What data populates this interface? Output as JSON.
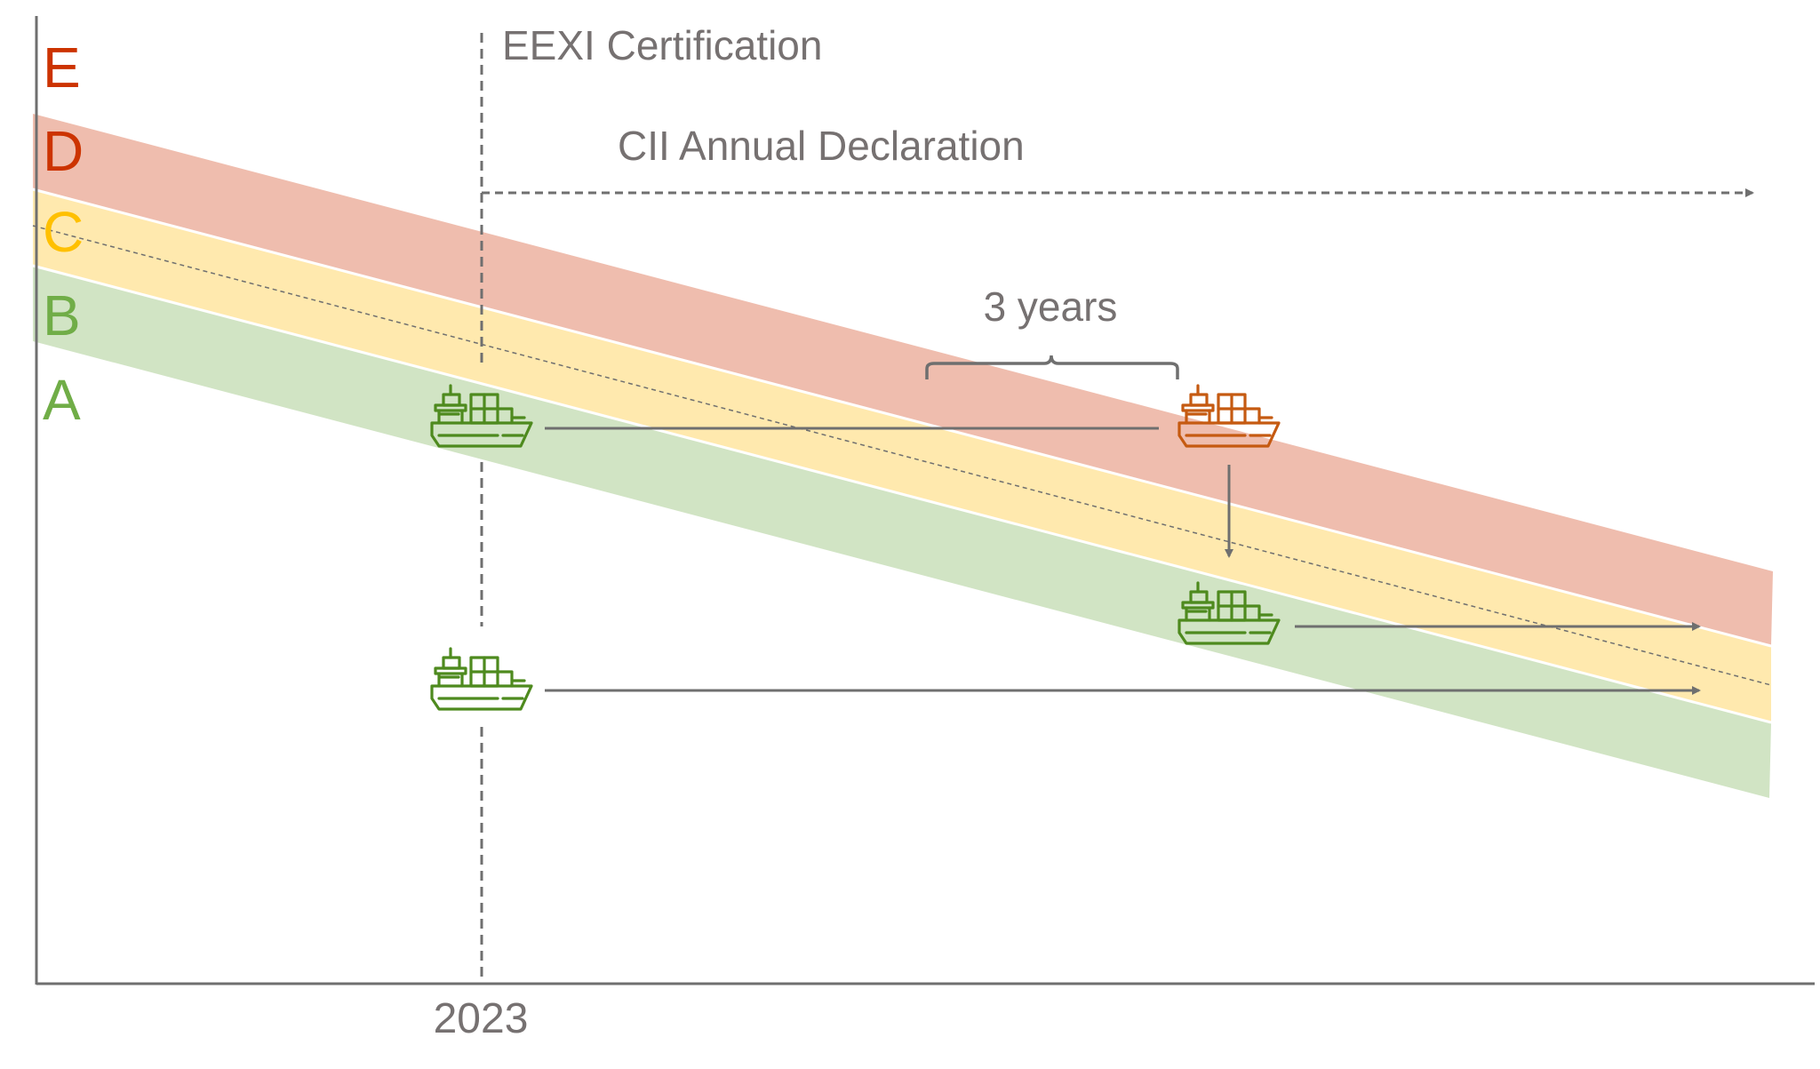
{
  "ratings": [
    {
      "letter": "E",
      "color": "#CC3300"
    },
    {
      "letter": "D",
      "color": "#CC3300"
    },
    {
      "letter": "C",
      "color": "#FFC000"
    },
    {
      "letter": "B",
      "color": "#70AD47"
    },
    {
      "letter": "A",
      "color": "#70AD47"
    }
  ],
  "bands": {
    "red": "#EFBDAE",
    "yellow": "#FFE9AE",
    "green": "#D1E4C4"
  },
  "labels": {
    "eexi": "EEXI Certification",
    "cii": "CII Annual Declaration",
    "period": "3 years",
    "year": "2023"
  },
  "colors": {
    "text": "#767171",
    "line": "#6F6F6F",
    "ship_green": "#4E8A1E",
    "ship_orange": "#C55A11"
  },
  "ships": [
    {
      "id": "ship-2023-rated-b",
      "color": "ship_green"
    },
    {
      "id": "ship-after-3-years-rated-d",
      "color": "ship_orange"
    },
    {
      "id": "ship-improved-rated-b",
      "color": "ship_green"
    },
    {
      "id": "ship-2023-rated-a",
      "color": "ship_green"
    }
  ]
}
